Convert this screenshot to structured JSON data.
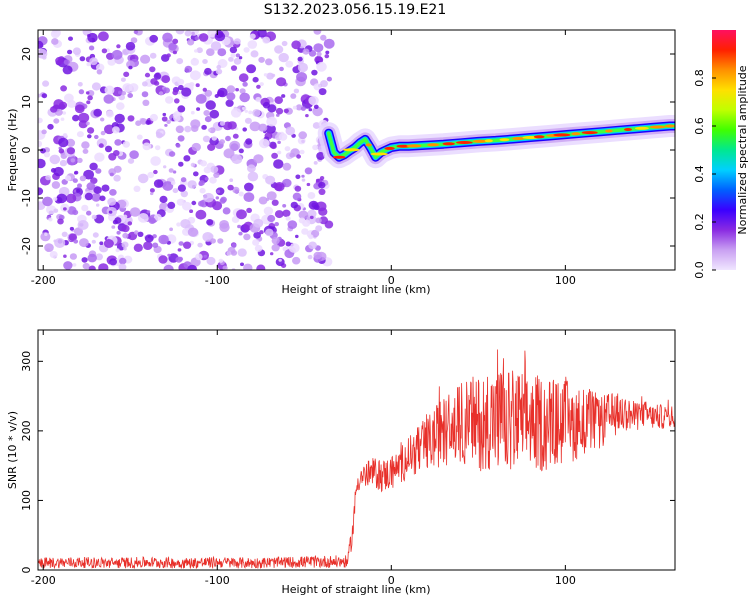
{
  "title": "S132.2023.056.15.19.E21",
  "colors": {
    "snr_line": "#e8302a",
    "noise_purple": "#7a1fd8",
    "colorbar": [
      "#f0e6ff",
      "#c9a0f2",
      "#8a2be2",
      "#3a00ff",
      "#0060ff",
      "#00d0ff",
      "#00e890",
      "#40ff00",
      "#c0ff00",
      "#ffe000",
      "#ff9000",
      "#ff2000",
      "#ff1060"
    ]
  },
  "chart_data": [
    {
      "type": "heatmap",
      "title": "",
      "xlabel": "Height of straight line (km)",
      "ylabel": "Frequency (Hz)",
      "xlim": [
        -203,
        163
      ],
      "ylim": [
        -25,
        25
      ],
      "xticks": [
        -200,
        -100,
        0,
        100
      ],
      "yticks": [
        -20,
        -10,
        0,
        10,
        20
      ],
      "noise_region_x": [
        -203,
        -35
      ],
      "ridge": {
        "x": [
          -36,
          -33,
          -30,
          -27,
          -24,
          -21,
          -18,
          -15,
          -12,
          -9,
          -6,
          -3,
          0,
          5,
          10,
          20,
          30,
          40,
          50,
          60,
          70,
          80,
          90,
          100,
          110,
          120,
          130,
          140,
          150,
          160,
          163
        ],
        "y": [
          3.5,
          -0.5,
          -1.5,
          -1.0,
          -0.2,
          0.5,
          1.5,
          2.2,
          0.5,
          -1.5,
          -0.5,
          0.0,
          0.5,
          0.8,
          0.8,
          1.0,
          1.2,
          1.5,
          1.8,
          2.0,
          2.3,
          2.6,
          2.9,
          3.2,
          3.5,
          3.8,
          4.1,
          4.4,
          4.7,
          5.0,
          5.0
        ]
      },
      "colorbar": {
        "label": "Normalized spectral amplitude",
        "range": [
          0.0,
          1.0
        ],
        "ticks": [
          0.0,
          0.2,
          0.4,
          0.6,
          0.8
        ]
      }
    },
    {
      "type": "line",
      "title": "",
      "xlabel": "Height of straight line (km)",
      "ylabel": "SNR (10 * v/v)",
      "xlim": [
        -203,
        163
      ],
      "ylim": [
        0,
        345
      ],
      "xticks": [
        -200,
        -100,
        0,
        100
      ],
      "yticks": [
        0,
        100,
        200,
        300
      ],
      "series": [
        {
          "x": [
            -203,
            -180,
            -160,
            -140,
            -120,
            -100,
            -80,
            -60,
            -40,
            -25,
            -22,
            -20,
            -18,
            -15,
            -10,
            -5,
            0,
            5,
            10,
            15,
            20,
            25,
            30,
            35,
            40,
            45,
            50,
            55,
            60,
            65,
            70,
            75,
            80,
            85,
            90,
            95,
            100,
            105,
            110,
            115,
            120,
            125,
            130,
            135,
            140,
            145,
            150,
            155,
            160,
            163
          ],
          "values": [
            10,
            11,
            10,
            11,
            10,
            11,
            10,
            11,
            12,
            12,
            60,
            120,
            135,
            135,
            140,
            135,
            140,
            150,
            165,
            170,
            180,
            190,
            200,
            205,
            210,
            215,
            210,
            220,
            215,
            215,
            210,
            215,
            215,
            210,
            210,
            210,
            215,
            210,
            215,
            215,
            210,
            220,
            225,
            225,
            220,
            225,
            220,
            220,
            220,
            220
          ],
          "spread": [
            8,
            8,
            8,
            8,
            8,
            8,
            8,
            8,
            9,
            9,
            20,
            18,
            18,
            20,
            22,
            24,
            25,
            28,
            30,
            35,
            40,
            45,
            50,
            55,
            60,
            65,
            70,
            75,
            75,
            75,
            75,
            75,
            70,
            70,
            70,
            65,
            60,
            55,
            50,
            45,
            40,
            35,
            30,
            25,
            22,
            20,
            18,
            18,
            16,
            16
          ]
        }
      ]
    }
  ]
}
